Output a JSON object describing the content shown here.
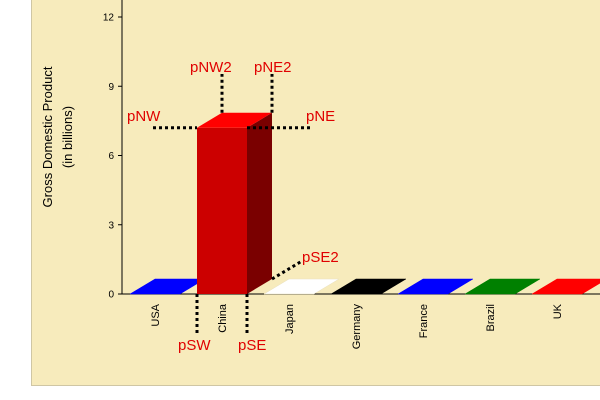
{
  "chart_data": {
    "type": "bar",
    "style": "3d",
    "ylabel_line1": "Gross Domestic Product",
    "ylabel_line2": "(in billions)",
    "ylim": [
      0,
      12
    ],
    "yticks": [
      0,
      3,
      6,
      9,
      12
    ],
    "categories": [
      "USA",
      "China",
      "Japan",
      "Germany",
      "France",
      "Brazil",
      "UK"
    ],
    "values": [
      0,
      7.2,
      0,
      0,
      0,
      0,
      0
    ],
    "colors": [
      "#0000ff",
      "#cc0000",
      "#ffffff",
      "#000000",
      "#0000ff",
      "#008000",
      "#ff0000"
    ],
    "grid": false,
    "annotations": [
      {
        "id": "pNW",
        "label": "pNW"
      },
      {
        "id": "pNW2",
        "label": "pNW2"
      },
      {
        "id": "pNE2",
        "label": "pNE2"
      },
      {
        "id": "pNE",
        "label": "pNE"
      },
      {
        "id": "pSE2",
        "label": "pSE2"
      },
      {
        "id": "pSW",
        "label": "pSW"
      },
      {
        "id": "pSE",
        "label": "pSE"
      }
    ]
  }
}
